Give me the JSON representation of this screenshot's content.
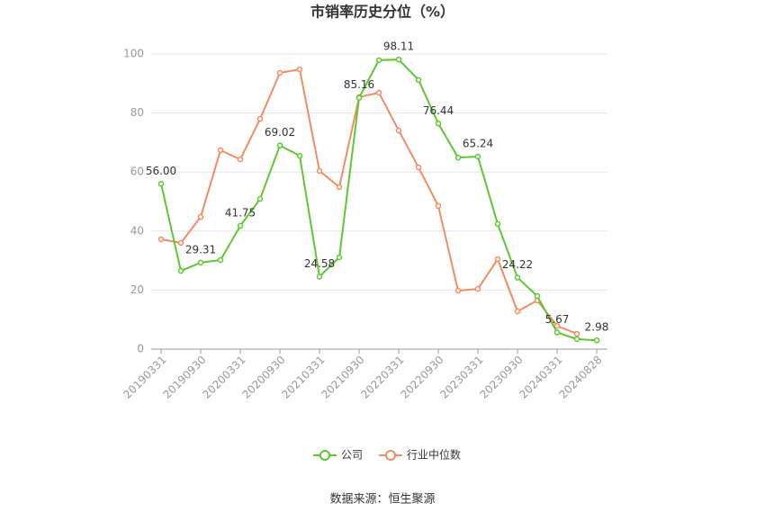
{
  "chart_data": {
    "type": "line",
    "title": "市销率历史分位（%）",
    "categories": [
      "20190331",
      null,
      "20190930",
      null,
      "20200331",
      null,
      "20200930",
      null,
      "20210331",
      null,
      "20210930",
      null,
      "20220331",
      null,
      "20220930",
      null,
      "20230331",
      null,
      "20230930",
      null,
      "20240331",
      null,
      "20240828"
    ],
    "series": [
      {
        "name": "公司",
        "color": "#5cc832",
        "values": [
          56.0,
          26.5,
          29.31,
          30.2,
          41.75,
          50.9,
          69.02,
          65.5,
          24.58,
          31.1,
          85.16,
          97.9,
          98.11,
          91.2,
          76.44,
          64.9,
          65.24,
          42.4,
          24.22,
          18.0,
          5.67,
          3.4,
          2.98
        ],
        "value_labels": [
          "56.00",
          null,
          "29.31",
          null,
          "41.75",
          null,
          "69.02",
          null,
          "24.58",
          null,
          "85.16",
          null,
          "98.11",
          null,
          "76.44",
          null,
          "65.24",
          null,
          "24.22",
          null,
          "5.67",
          null,
          "2.98"
        ]
      },
      {
        "name": "行业中位数",
        "color": "#f28c62",
        "values": [
          37.2,
          36.0,
          44.8,
          67.4,
          64.3,
          78.0,
          93.6,
          94.8,
          60.4,
          54.9,
          85.4,
          86.9,
          74.1,
          61.6,
          48.5,
          19.8,
          20.4,
          30.5,
          12.8,
          16.5,
          7.9,
          5.2,
          null
        ]
      }
    ],
    "ylim": [
      0,
      100
    ],
    "yticks": [
      0,
      20,
      40,
      60,
      80,
      100
    ],
    "grid": true,
    "legend": "bottom",
    "source": "数据来源：恒生聚源"
  }
}
